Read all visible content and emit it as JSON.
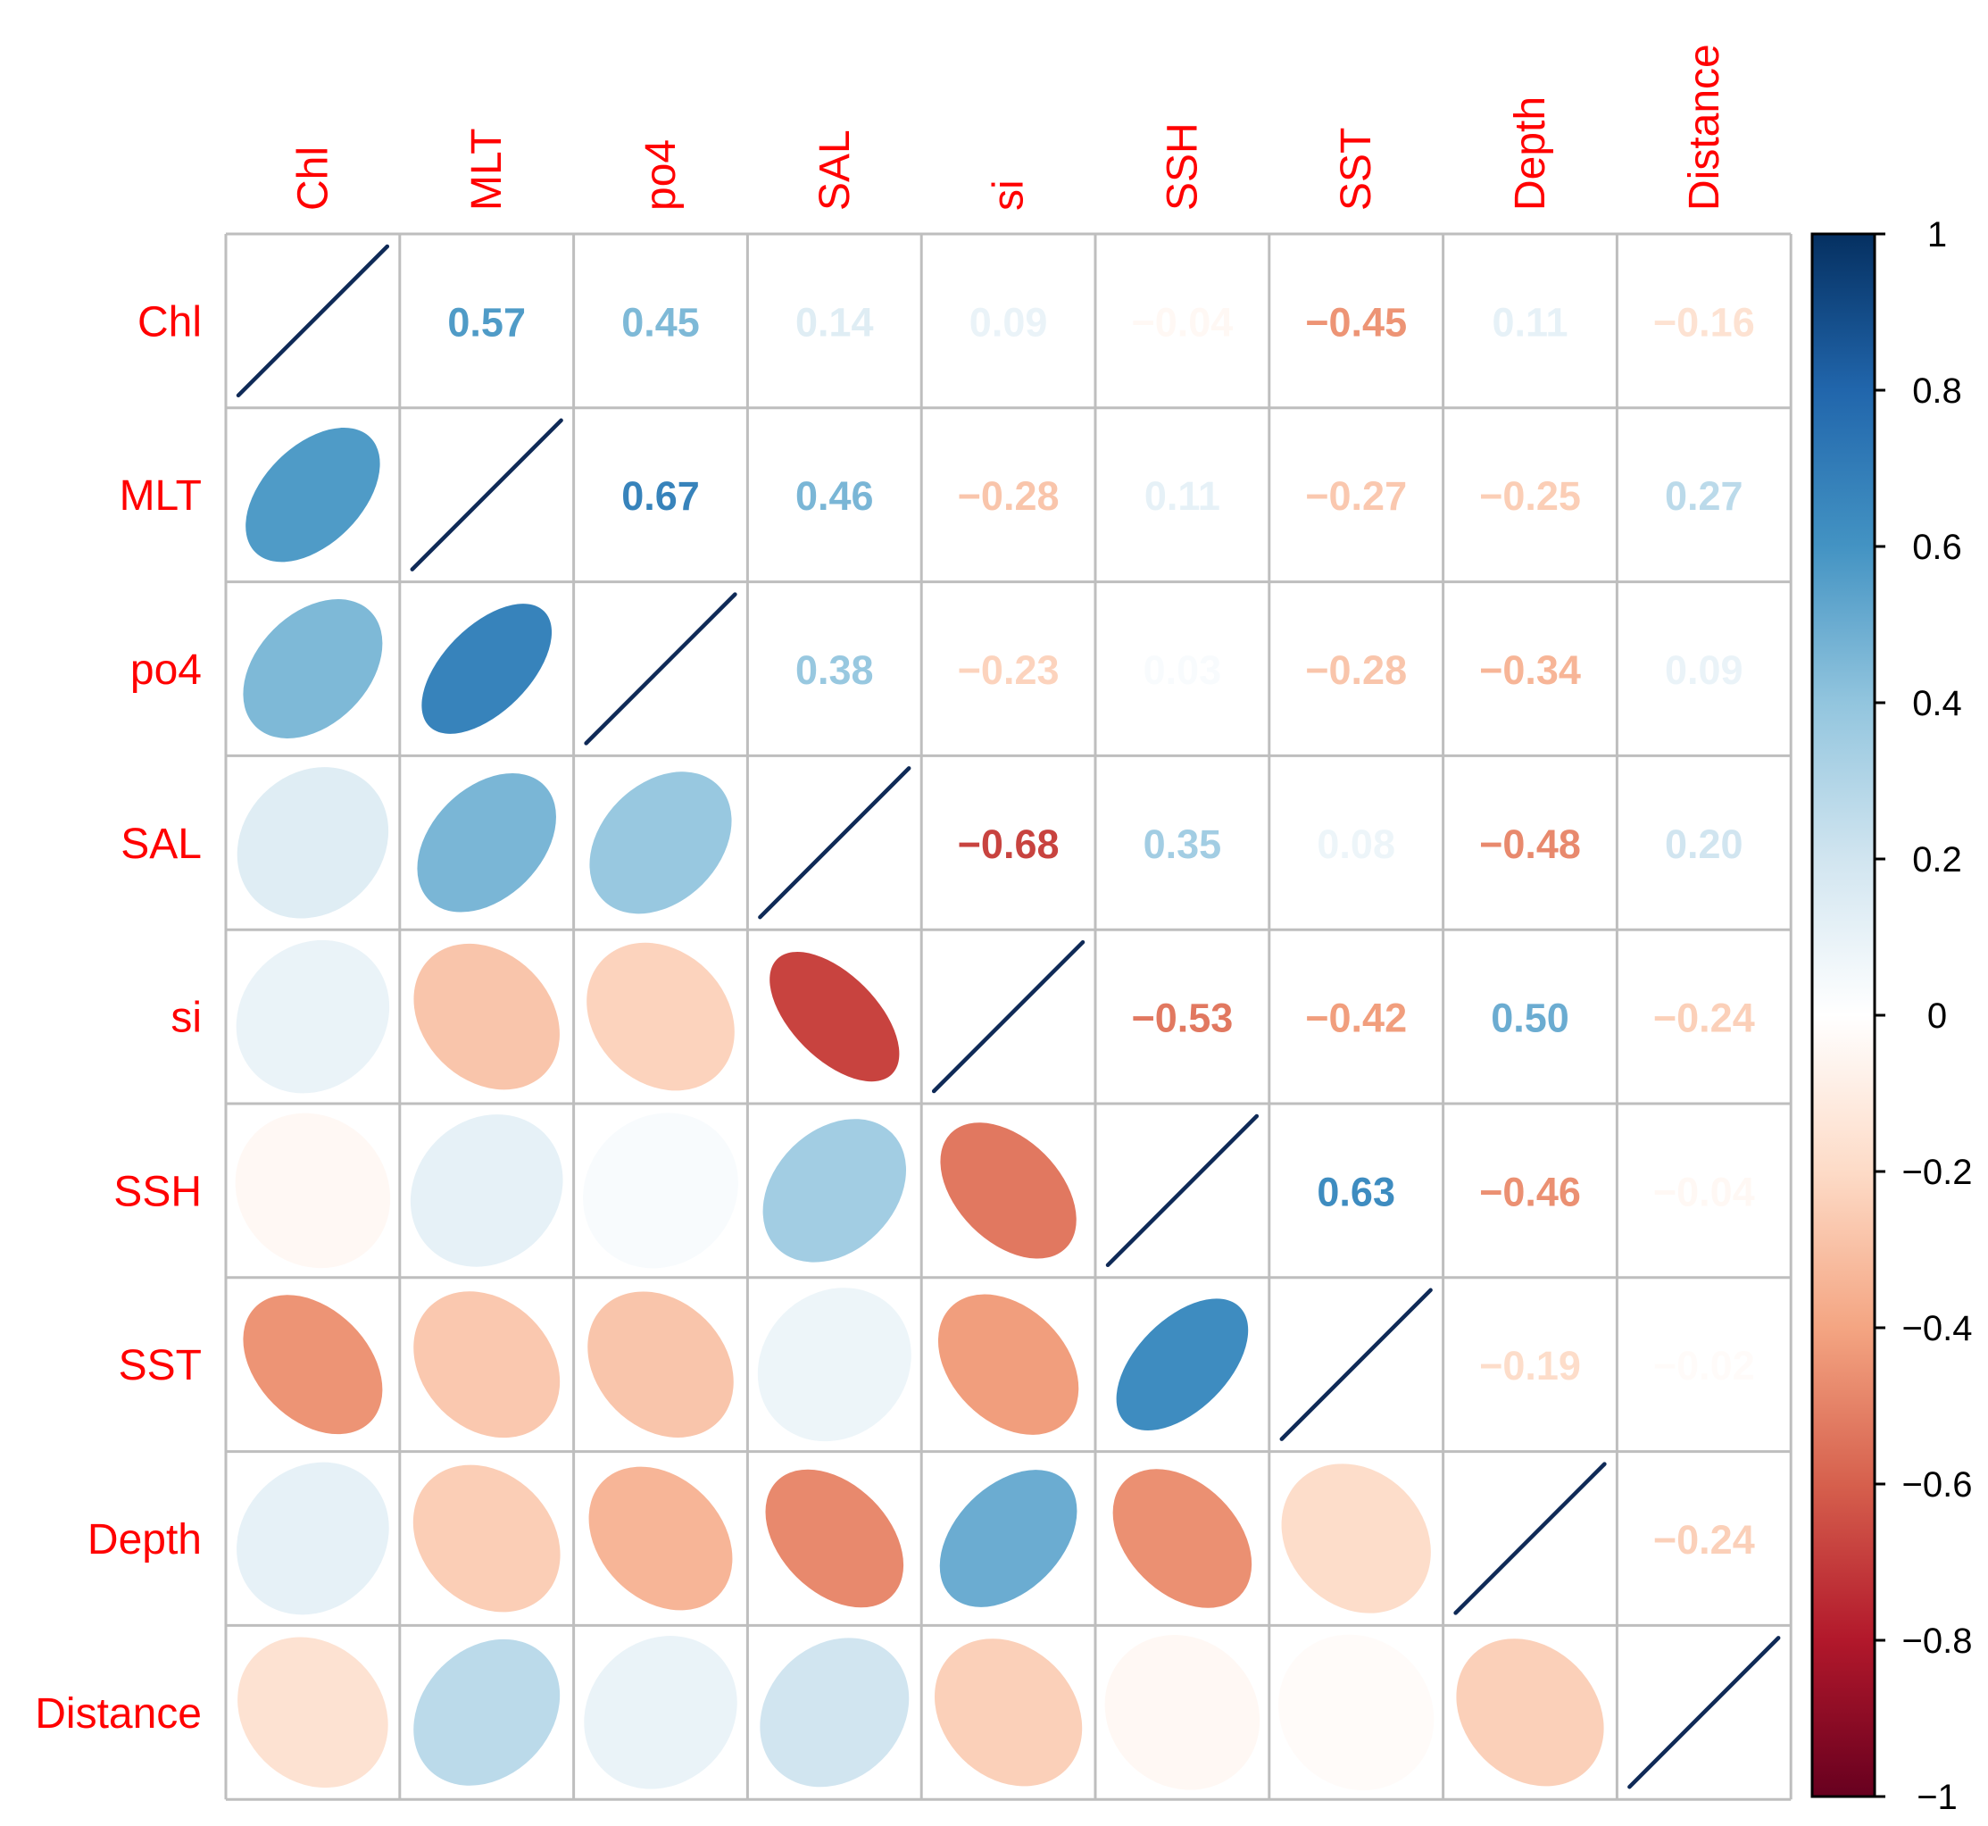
{
  "chart_data": {
    "type": "heatmap",
    "subtype": "correlation-matrix-mixed",
    "lower_method": "ellipse",
    "upper_method": "number",
    "variables": [
      "Chl",
      "MLT",
      "po4",
      "SAL",
      "si",
      "SSH",
      "SST",
      "Depth",
      "Distance"
    ],
    "matrix": [
      [
        1,
        0.57,
        0.45,
        0.14,
        0.09,
        -0.04,
        -0.45,
        0.11,
        -0.16
      ],
      [
        0.57,
        1,
        0.67,
        0.46,
        -0.28,
        0.11,
        -0.27,
        -0.25,
        0.27
      ],
      [
        0.45,
        0.67,
        1,
        0.38,
        -0.23,
        0.03,
        -0.28,
        -0.34,
        0.09
      ],
      [
        0.14,
        0.46,
        0.38,
        1,
        -0.68,
        0.35,
        0.08,
        -0.48,
        0.2
      ],
      [
        0.09,
        -0.28,
        -0.23,
        -0.68,
        1,
        -0.53,
        -0.42,
        0.5,
        -0.24
      ],
      [
        -0.04,
        0.11,
        0.03,
        0.35,
        -0.53,
        1,
        0.63,
        -0.46,
        -0.04
      ],
      [
        -0.45,
        -0.27,
        -0.28,
        0.08,
        -0.42,
        0.63,
        1,
        -0.19,
        -0.02
      ],
      [
        0.11,
        -0.25,
        -0.34,
        -0.48,
        0.5,
        -0.46,
        -0.19,
        1,
        -0.24
      ],
      [
        -0.16,
        0.27,
        0.09,
        0.2,
        -0.24,
        -0.04,
        -0.02,
        -0.24,
        1
      ]
    ],
    "upper_labels": [
      [
        null,
        "0.57",
        "0.45",
        "0.14",
        "0.09",
        "−0.04",
        "−0.45",
        "0.11",
        "−0.16"
      ],
      [
        null,
        null,
        "0.67",
        "0.46",
        "−0.28",
        "0.11",
        "−0.27",
        "−0.25",
        "0.27"
      ],
      [
        null,
        null,
        null,
        "0.38",
        "−0.23",
        "0.03",
        "−0.28",
        "−0.34",
        "0.09"
      ],
      [
        null,
        null,
        null,
        null,
        "−0.68",
        "0.35",
        "0.08",
        "−0.48",
        "0.20"
      ],
      [
        null,
        null,
        null,
        null,
        null,
        "−0.53",
        "−0.42",
        "0.50",
        "−0.24"
      ],
      [
        null,
        null,
        null,
        null,
        null,
        null,
        "0.63",
        "−0.46",
        "−0.04"
      ],
      [
        null,
        null,
        null,
        null,
        null,
        null,
        null,
        "−0.19",
        "−0.02"
      ],
      [
        null,
        null,
        null,
        null,
        null,
        null,
        null,
        null,
        "−0.24"
      ],
      [
        null,
        null,
        null,
        null,
        null,
        null,
        null,
        null,
        null
      ]
    ],
    "colorbar": {
      "range": [
        -1,
        1
      ],
      "ticks": [
        1,
        0.8,
        0.6,
        0.4,
        0.2,
        0,
        -0.2,
        -0.4,
        -0.6,
        -0.8,
        -1
      ],
      "tick_labels": [
        "1",
        "0.8",
        "0.6",
        "0.4",
        "0.2",
        "0",
        "−0.2",
        "−0.4",
        "−0.6",
        "−0.8",
        "−1"
      ]
    },
    "palette": [
      "#67001F",
      "#B2182B",
      "#D6604D",
      "#F4A582",
      "#FDDBC7",
      "#FFFFFF",
      "#D1E5F0",
      "#92C5DE",
      "#4393C3",
      "#2166AC",
      "#053061"
    ],
    "label_color": "#FF0000",
    "grid_color": "#BEBEBE",
    "diagonal_line_color": "#0F2A57",
    "legend_position": "right"
  }
}
